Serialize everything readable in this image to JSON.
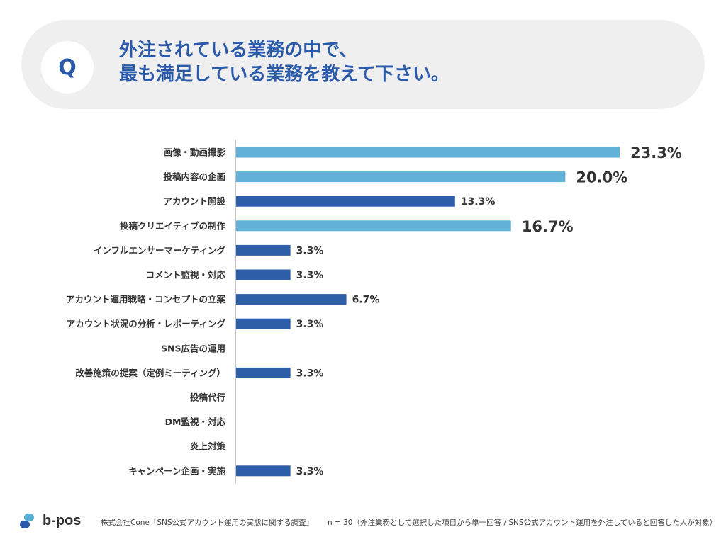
{
  "question": {
    "badge": "Q",
    "line1": "外注されている業務の中で、",
    "line2": "最も満足している業務を教えて下さい。"
  },
  "chart_data": {
    "type": "bar",
    "orientation": "horizontal",
    "categories": [
      "画像・動画撮影",
      "投稿内容の企画",
      "アカウント開設",
      "投稿クリエイティブの制作",
      "インフルエンサーマーケティング",
      "コメント監視・対応",
      "アカウント運用戦略・コンセプトの立案",
      "アカウント状況の分析・レポーティング",
      "SNS広告の運用",
      "改善施策の提案（定例ミーティング）",
      "投稿代行",
      "DM監視・対応",
      "炎上対策",
      "キャンペーン企画・実施"
    ],
    "values": [
      23.3,
      20.0,
      13.3,
      16.7,
      3.3,
      3.3,
      6.7,
      3.3,
      0,
      3.3,
      0,
      0,
      0,
      3.3
    ],
    "labels": [
      "23.3%",
      "20.0%",
      "13.3%",
      "16.7%",
      "3.3%",
      "3.3%",
      "6.7%",
      "3.3%",
      "",
      "3.3%",
      "",
      "",
      "",
      "3.3%"
    ],
    "bar_colors": [
      "#62b1d8",
      "#62b1d8",
      "#2f5ea9",
      "#62b1d8",
      "#2f5ea9",
      "#2f5ea9",
      "#2f5ea9",
      "#2f5ea9",
      "#2f5ea9",
      "#2f5ea9",
      "#2f5ea9",
      "#2f5ea9",
      "#2f5ea9",
      "#2f5ea9"
    ],
    "xlim": [
      0,
      25
    ],
    "grid": false
  },
  "footer": {
    "brand": "b-pos",
    "source": "株式会社Cone「SNS公式アカウント運用の実態に関する調査」",
    "note": "n = 30（外注業務として選択した項目から単一回答 / SNS公式アカウント運用を外注していると回答した人が対象）"
  }
}
